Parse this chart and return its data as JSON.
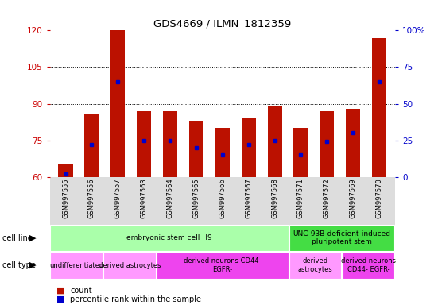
{
  "title": "GDS4669 / ILMN_1812359",
  "samples": [
    "GSM997555",
    "GSM997556",
    "GSM997557",
    "GSM997563",
    "GSM997564",
    "GSM997565",
    "GSM997566",
    "GSM997567",
    "GSM997568",
    "GSM997571",
    "GSM997572",
    "GSM997569",
    "GSM997570"
  ],
  "bar_bottoms": [
    60,
    60,
    60,
    60,
    60,
    60,
    60,
    60,
    60,
    60,
    60,
    60,
    60
  ],
  "bar_tops": [
    65,
    86,
    120,
    87,
    87,
    83,
    80,
    84,
    89,
    80,
    87,
    88,
    117
  ],
  "percentile_vals": [
    2,
    22,
    65,
    25,
    25,
    20,
    15,
    22,
    25,
    15,
    24,
    30,
    65
  ],
  "ylim_left": [
    60,
    120
  ],
  "ylim_right": [
    0,
    100
  ],
  "yticks_left": [
    60,
    75,
    90,
    105,
    120
  ],
  "yticks_right": [
    0,
    25,
    50,
    75,
    100
  ],
  "bar_color": "#BB1100",
  "dot_color": "#0000CC",
  "background_color": "#FFFFFF",
  "plot_bg": "#FFFFFF",
  "cell_line_data": [
    {
      "label": "embryonic stem cell H9",
      "start": 0,
      "end": 9,
      "color": "#AAFFAA"
    },
    {
      "label": "UNC-93B-deficient-induced\npluripotent stem",
      "start": 9,
      "end": 13,
      "color": "#44DD44"
    }
  ],
  "cell_type_data": [
    {
      "label": "undifferentiated",
      "start": 0,
      "end": 2,
      "color": "#FF99FF"
    },
    {
      "label": "derived astrocytes",
      "start": 2,
      "end": 4,
      "color": "#FF99FF"
    },
    {
      "label": "derived neurons CD44-\nEGFR-",
      "start": 4,
      "end": 9,
      "color": "#EE44EE"
    },
    {
      "label": "derived\nastrocytes",
      "start": 9,
      "end": 11,
      "color": "#FF99FF"
    },
    {
      "label": "derived neurons\nCD44- EGFR-",
      "start": 11,
      "end": 13,
      "color": "#EE44EE"
    }
  ],
  "legend_count_color": "#BB1100",
  "legend_pct_color": "#0000CC",
  "tick_color_left": "#CC0000",
  "tick_color_right": "#0000CC",
  "xtick_bg": "#DDDDDD"
}
